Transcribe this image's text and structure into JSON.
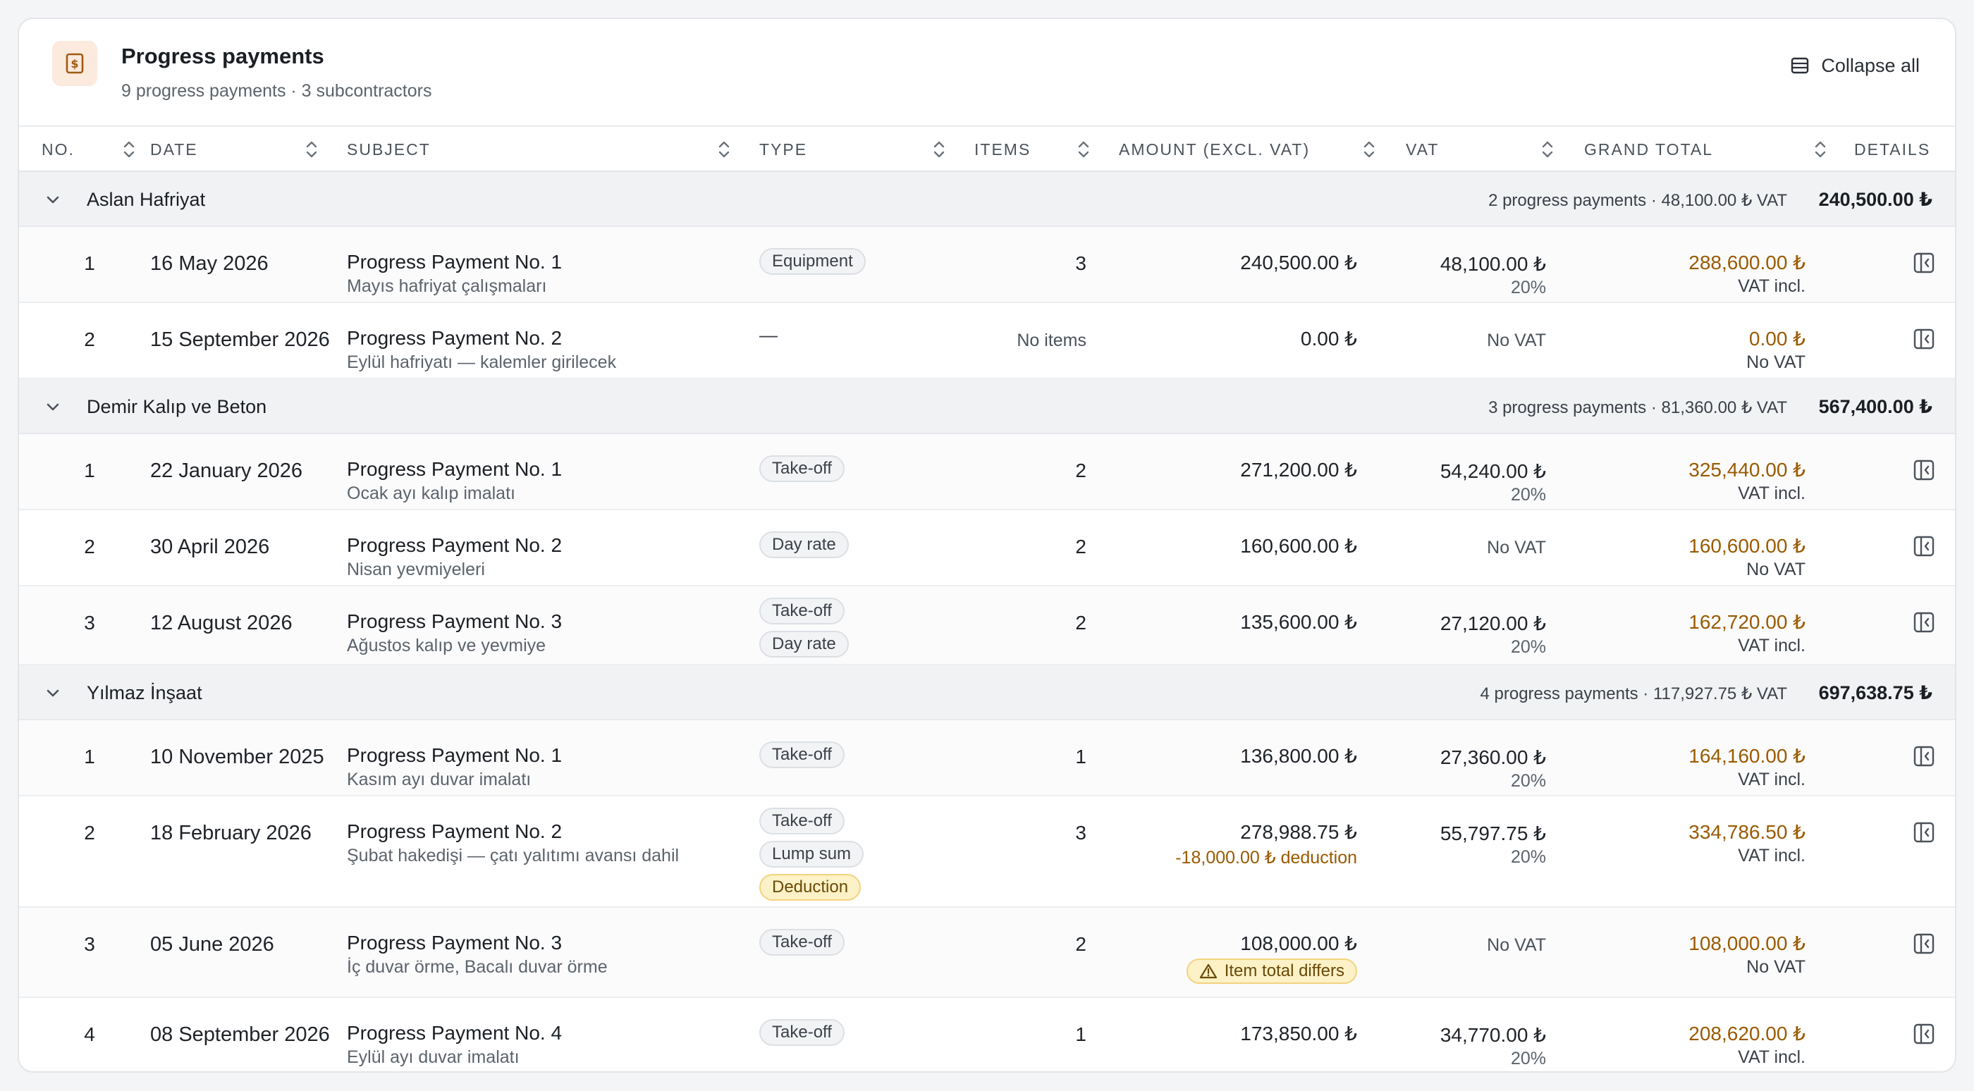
{
  "header": {
    "title": "Progress payments",
    "subtitle": "9 progress payments · 3 subcontractors",
    "icon": "invoice-dollar-icon",
    "collapse_label": "Collapse all"
  },
  "columns": {
    "no": "NO.",
    "date": "DATE",
    "subject": "SUBJECT",
    "type": "TYPE",
    "items": "ITEMS",
    "amount": "AMOUNT (EXCL. VAT)",
    "vat": "VAT",
    "grand_total": "GRAND TOTAL",
    "details": "DETAILS"
  },
  "colors": {
    "accent": "#9a5a00",
    "warning_bg": "#fdf1c7",
    "icon_bg": "#fbeadd"
  },
  "groups": [
    {
      "name": "Aslan Hafriyat",
      "summary": "2 progress payments · 48,100.00 ₺ VAT",
      "total": "240,500.00 ₺",
      "rows": [
        {
          "no": "1",
          "date": "16 May 2026",
          "subject": "Progress Payment No. 1",
          "desc": "Mayıs hafriyat çalışmaları",
          "types": [
            "Equipment"
          ],
          "items": "3",
          "amount": "240,500.00 ₺",
          "vat": "48,100.00 ₺",
          "vat_rate": "20%",
          "grand_total": "288,600.00 ₺",
          "gt_note": "VAT incl."
        },
        {
          "no": "2",
          "date": "15 September 2026",
          "subject": "Progress Payment No. 2",
          "desc": "Eylül hafriyatı — kalemler girilecek",
          "types_empty": "—",
          "items": "No items",
          "amount": "0.00 ₺",
          "vat": "No VAT",
          "grand_total": "0.00 ₺",
          "gt_note": "No VAT"
        }
      ]
    },
    {
      "name": "Demir Kalıp ve Beton",
      "summary": "3 progress payments · 81,360.00 ₺ VAT",
      "total": "567,400.00 ₺",
      "rows": [
        {
          "no": "1",
          "date": "22 January 2026",
          "subject": "Progress Payment No. 1",
          "desc": "Ocak ayı kalıp imalatı",
          "types": [
            "Take-off"
          ],
          "items": "2",
          "amount": "271,200.00 ₺",
          "vat": "54,240.00 ₺",
          "vat_rate": "20%",
          "grand_total": "325,440.00 ₺",
          "gt_note": "VAT incl."
        },
        {
          "no": "2",
          "date": "30 April 2026",
          "subject": "Progress Payment No. 2",
          "desc": "Nisan yevmiyeleri",
          "types": [
            "Day rate"
          ],
          "items": "2",
          "amount": "160,600.00 ₺",
          "vat": "No VAT",
          "grand_total": "160,600.00 ₺",
          "gt_note": "No VAT"
        },
        {
          "no": "3",
          "date": "12 August 2026",
          "subject": "Progress Payment No. 3",
          "desc": "Ağustos kalıp ve yevmiye",
          "types": [
            "Take-off",
            "Day rate"
          ],
          "items": "2",
          "amount": "135,600.00 ₺",
          "vat": "27,120.00 ₺",
          "vat_rate": "20%",
          "grand_total": "162,720.00 ₺",
          "gt_note": "VAT incl."
        }
      ]
    },
    {
      "name": "Yılmaz İnşaat",
      "summary": "4 progress payments · 117,927.75 ₺ VAT",
      "total": "697,638.75 ₺",
      "rows": [
        {
          "no": "1",
          "date": "10 November 2025",
          "subject": "Progress Payment No. 1",
          "desc": "Kasım ayı duvar imalatı",
          "types": [
            "Take-off"
          ],
          "items": "1",
          "amount": "136,800.00 ₺",
          "vat": "27,360.00 ₺",
          "vat_rate": "20%",
          "grand_total": "164,160.00 ₺",
          "gt_note": "VAT incl."
        },
        {
          "no": "2",
          "date": "18 February 2026",
          "subject": "Progress Payment No. 2",
          "desc": "Şubat hakedişi — çatı yalıtımı avansı dahil",
          "types": [
            "Take-off",
            "Lump sum"
          ],
          "warn_type": "Deduction",
          "items": "3",
          "amount": "278,988.75 ₺",
          "amount_note": "-18,000.00 ₺ deduction",
          "vat": "55,797.75 ₺",
          "vat_rate": "20%",
          "grand_total": "334,786.50 ₺",
          "gt_note": "VAT incl."
        },
        {
          "no": "3",
          "date": "05 June 2026",
          "subject": "Progress Payment No. 3",
          "desc": "İç duvar örme, Bacalı duvar örme",
          "types": [
            "Take-off"
          ],
          "items": "2",
          "amount": "108,000.00 ₺",
          "diff_badge": "Item total differs",
          "vat": "No VAT",
          "grand_total": "108,000.00 ₺",
          "gt_note": "No VAT"
        },
        {
          "no": "4",
          "date": "08 September 2026",
          "subject": "Progress Payment No. 4",
          "desc": "Eylül ayı duvar imalatı",
          "types": [
            "Take-off"
          ],
          "items": "1",
          "amount": "173,850.00 ₺",
          "vat": "34,770.00 ₺",
          "vat_rate": "20%",
          "grand_total": "208,620.00 ₺",
          "gt_note": "VAT incl."
        }
      ]
    }
  ]
}
